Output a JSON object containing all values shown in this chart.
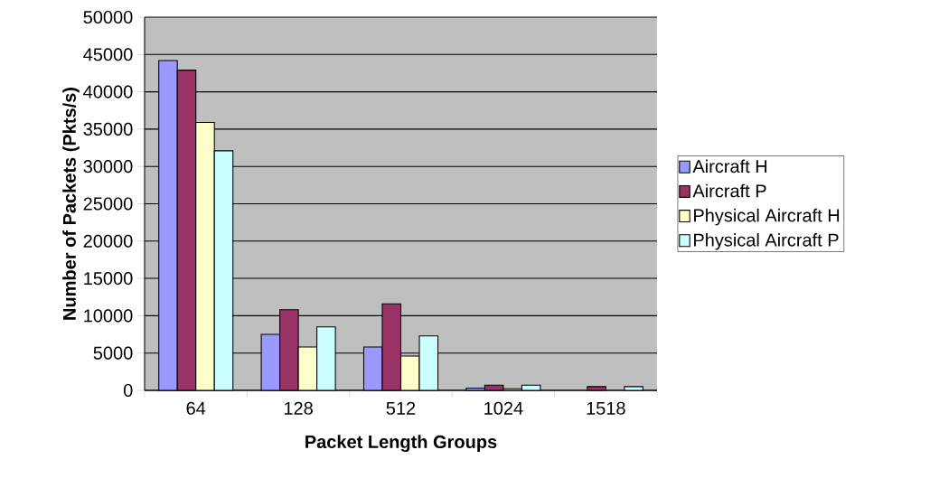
{
  "chart_data": {
    "type": "bar",
    "xlabel": "Packet Length Groups",
    "ylabel": "Number of Packets (Pkts/s)",
    "categories": [
      "64",
      "128",
      "512",
      "1024",
      "1518"
    ],
    "series": [
      {
        "name": "Aircraft H",
        "color": "#9999ff",
        "values": [
          44200,
          7500,
          5800,
          300,
          null
        ]
      },
      {
        "name": "Aircraft P",
        "color": "#993366",
        "values": [
          42900,
          10800,
          11600,
          700,
          500
        ]
      },
      {
        "name": "Physical Aircraft H",
        "color": "#ffffcc",
        "values": [
          35900,
          5800,
          4600,
          200,
          null
        ]
      },
      {
        "name": "Physical Aircraft P",
        "color": "#ccffff",
        "values": [
          32100,
          8500,
          7300,
          700,
          500
        ]
      }
    ],
    "ylim": [
      0,
      50000
    ],
    "yticks": [
      0,
      5000,
      10000,
      15000,
      20000,
      25000,
      30000,
      35000,
      40000,
      45000,
      50000
    ],
    "grid": "y",
    "legend": "right"
  }
}
